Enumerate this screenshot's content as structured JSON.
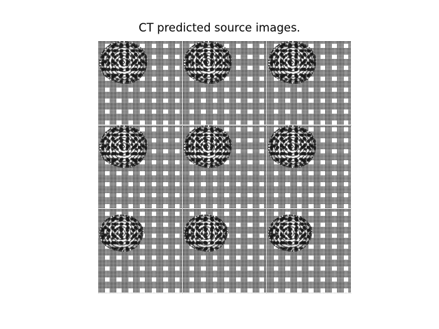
{
  "figure": {
    "title": "CT predicted source images."
  },
  "image_grid": {
    "rows": 3,
    "columns": 3,
    "colors": {
      "background": "#ffffff",
      "pattern_dark": "#2b2b2b"
    }
  }
}
